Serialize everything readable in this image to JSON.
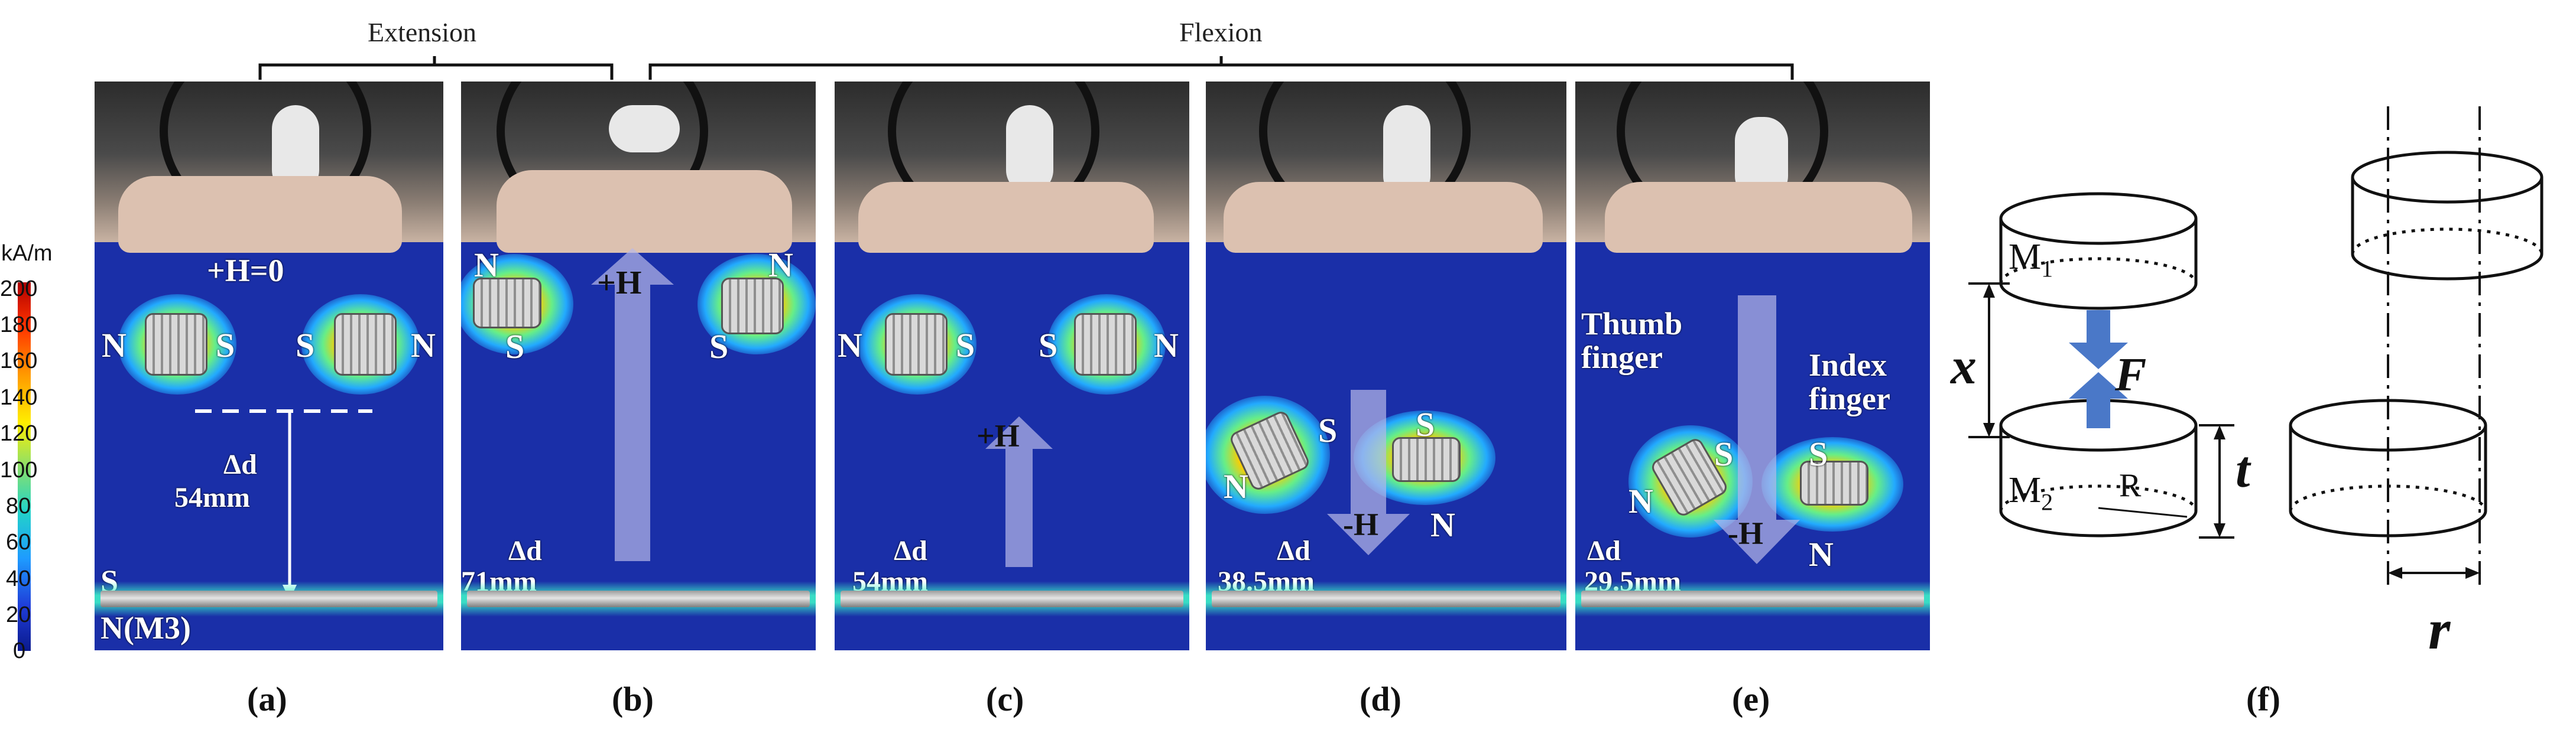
{
  "headers": {
    "extension": "Extension",
    "flexion": "Flexion"
  },
  "colorbar": {
    "unit": "kA/m",
    "ticks": [
      "200",
      "180",
      "160",
      "140",
      "120",
      "100",
      "80",
      "60",
      "40",
      "20",
      "0"
    ]
  },
  "panels": [
    {
      "letter": "(a)",
      "labels": {
        "field": "+H=0",
        "d_symbol": "Δd",
        "d_value": "54mm",
        "bottom_s": "S",
        "bottom_n": "N(M3)"
      },
      "poles": [
        "N",
        "S",
        "S",
        "N"
      ]
    },
    {
      "letter": "(b)",
      "labels": {
        "field": "+H",
        "d_symbol": "Δd",
        "d_value": "71mm"
      },
      "poles": [
        "N",
        "S",
        "S",
        "N"
      ]
    },
    {
      "letter": "(c)",
      "labels": {
        "field": "+H",
        "d_symbol": "Δd",
        "d_value": "54mm"
      },
      "poles": [
        "N",
        "S",
        "S",
        "N"
      ]
    },
    {
      "letter": "(d)",
      "labels": {
        "field": "-H",
        "d_symbol": "Δd",
        "d_value": "38.5mm"
      },
      "poles": [
        "N",
        "S",
        "S",
        "N"
      ]
    },
    {
      "letter": "(e)",
      "labels": {
        "field": "-H",
        "d_symbol": "Δd",
        "d_value": "29.5mm",
        "thumb": "Thumb\nfinger",
        "index": "Index\nfinger"
      },
      "poles": [
        "N",
        "S",
        "S",
        "N"
      ]
    }
  ],
  "panel_f": {
    "letter": "(f)",
    "m1": "M",
    "m1_sub": "1",
    "m2": "M",
    "m2_sub": "2",
    "r_small": "R",
    "x": "x",
    "f": "F",
    "t": "t",
    "r": "r"
  },
  "colors": {
    "field_background": "#1a2fa8",
    "arrow_fill": "#b8b8e8",
    "force_arrow": "#4a78c8"
  }
}
